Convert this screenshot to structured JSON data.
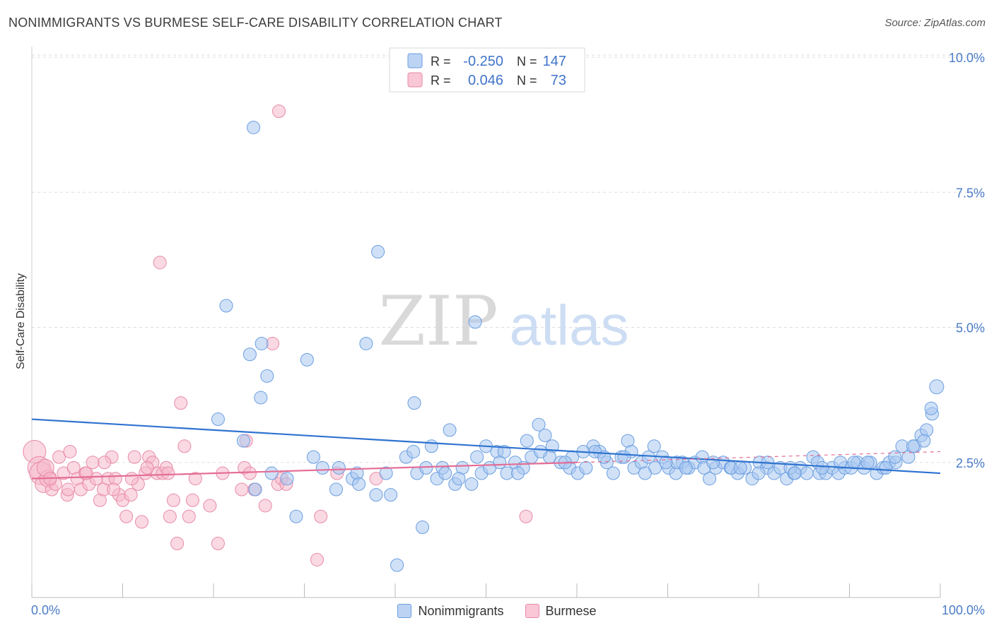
{
  "title": "NONIMMIGRANTS VS BURMESE SELF-CARE DISABILITY CORRELATION CHART",
  "source": "Source: ZipAtlas.com",
  "watermark": {
    "zip": "ZIP",
    "atlas": "atlas"
  },
  "colors": {
    "blue_fill": "#a9c8f0",
    "blue_stroke": "#6b9ee0",
    "blue_line": "#2f73d0",
    "pink_fill": "#f6b9cc",
    "pink_stroke": "#e88aa8",
    "pink_line": "#e46d96",
    "tick_label": "#4a7cc7",
    "grid": "#dddddd"
  },
  "legend_top": {
    "rows": [
      {
        "series": "Nonimmigrants",
        "r_label": "R =",
        "r_value": "-0.250",
        "n_label": "N =",
        "n_value": "147"
      },
      {
        "series": "Burmese",
        "r_label": "R =",
        "r_value": "0.046",
        "n_label": "N =",
        "n_value": "73"
      }
    ]
  },
  "legend_bottom": [
    "Nonimmigrants",
    "Burmese"
  ],
  "chart_data": {
    "type": "scatter",
    "title": "NONIMMIGRANTS VS BURMESE SELF-CARE DISABILITY CORRELATION CHART",
    "ylabel": "Self-Care Disability",
    "xlabel": "",
    "x_range": [
      0,
      100
    ],
    "y_range": [
      0,
      10.0
    ],
    "x_tick_labels": [
      "0.0%",
      "100.0%"
    ],
    "y_ticks": [
      2.5,
      5.0,
      7.5,
      10.0
    ],
    "y_tick_labels": [
      "2.5%",
      "5.0%",
      "7.5%",
      "10.0%"
    ],
    "grid": true,
    "legend_placement": "top-center",
    "series": [
      {
        "name": "Nonimmigrants",
        "color": "#a9c8f0",
        "trend": {
          "x": [
            0,
            100
          ],
          "y": [
            3.3,
            2.3
          ],
          "style": "solid"
        },
        "points": [
          [
            24.4,
            8.7
          ],
          [
            38.1,
            6.4
          ],
          [
            21.4,
            5.4
          ],
          [
            48.8,
            5.1
          ],
          [
            36.8,
            4.7
          ],
          [
            25.3,
            4.7
          ],
          [
            24.0,
            4.5
          ],
          [
            30.3,
            4.4
          ],
          [
            25.9,
            4.1
          ],
          [
            25.2,
            3.7
          ],
          [
            42.1,
            3.6
          ],
          [
            20.5,
            3.3
          ],
          [
            23.3,
            2.9
          ],
          [
            26.4,
            2.3
          ],
          [
            28.1,
            2.2
          ],
          [
            29.1,
            1.5
          ],
          [
            24.6,
            2.0
          ],
          [
            33.8,
            2.4
          ],
          [
            33.5,
            2.0
          ],
          [
            35.3,
            2.2
          ],
          [
            35.8,
            2.3
          ],
          [
            37.9,
            1.9
          ],
          [
            39.5,
            1.9
          ],
          [
            40.2,
            0.6
          ],
          [
            41.2,
            2.6
          ],
          [
            42.4,
            2.3
          ],
          [
            43.4,
            2.4
          ],
          [
            44.6,
            2.2
          ],
          [
            45.2,
            2.4
          ],
          [
            46.0,
            3.1
          ],
          [
            46.6,
            2.1
          ],
          [
            47.4,
            2.4
          ],
          [
            48.4,
            2.1
          ],
          [
            49.5,
            2.3
          ],
          [
            50.4,
            2.4
          ],
          [
            51.2,
            2.7
          ],
          [
            52.3,
            2.3
          ],
          [
            53.2,
            2.5
          ],
          [
            54.1,
            2.4
          ],
          [
            55.0,
            2.6
          ],
          [
            55.8,
            3.2
          ],
          [
            56.5,
            3.0
          ],
          [
            57.3,
            2.8
          ],
          [
            58.2,
            2.5
          ],
          [
            59.2,
            2.4
          ],
          [
            60.1,
            2.3
          ],
          [
            61.0,
            2.4
          ],
          [
            61.8,
            2.8
          ],
          [
            62.5,
            2.7
          ],
          [
            63.3,
            2.5
          ],
          [
            64.0,
            2.3
          ],
          [
            64.9,
            2.6
          ],
          [
            65.6,
            2.9
          ],
          [
            66.3,
            2.4
          ],
          [
            67.1,
            2.5
          ],
          [
            67.9,
            2.6
          ],
          [
            68.6,
            2.4
          ],
          [
            69.4,
            2.6
          ],
          [
            70.1,
            2.4
          ],
          [
            70.9,
            2.3
          ],
          [
            71.6,
            2.5
          ],
          [
            72.3,
            2.4
          ],
          [
            73.0,
            2.5
          ],
          [
            73.8,
            2.6
          ],
          [
            74.6,
            2.2
          ],
          [
            75.3,
            2.4
          ],
          [
            76.1,
            2.5
          ],
          [
            76.9,
            2.4
          ],
          [
            77.7,
            2.3
          ],
          [
            78.5,
            2.4
          ],
          [
            79.3,
            2.2
          ],
          [
            80.1,
            2.5
          ],
          [
            80.9,
            2.4
          ],
          [
            81.7,
            2.3
          ],
          [
            82.4,
            2.4
          ],
          [
            83.1,
            2.2
          ],
          [
            83.9,
            2.3
          ],
          [
            84.6,
            2.4
          ],
          [
            85.3,
            2.3
          ],
          [
            86.0,
            2.6
          ],
          [
            86.7,
            2.3
          ],
          [
            87.4,
            2.3
          ],
          [
            88.1,
            2.4
          ],
          [
            88.8,
            2.3
          ],
          [
            89.5,
            2.4
          ],
          [
            90.2,
            2.4
          ],
          [
            90.9,
            2.5
          ],
          [
            91.6,
            2.4
          ],
          [
            92.3,
            2.5
          ],
          [
            93.0,
            2.3
          ],
          [
            93.7,
            2.4
          ],
          [
            94.4,
            2.5
          ],
          [
            95.1,
            2.5
          ],
          [
            95.8,
            2.8
          ],
          [
            96.5,
            2.6
          ],
          [
            97.2,
            2.8
          ],
          [
            97.9,
            3.0
          ],
          [
            98.5,
            3.1
          ],
          [
            99.1,
            3.4
          ],
          [
            99.6,
            3.9
          ],
          [
            98.2,
            2.9
          ],
          [
            99.0,
            3.5
          ],
          [
            42.0,
            2.7
          ],
          [
            44.0,
            2.8
          ],
          [
            52.0,
            2.7
          ],
          [
            54.5,
            2.9
          ],
          [
            57.0,
            2.6
          ],
          [
            59.5,
            2.6
          ],
          [
            62.0,
            2.7
          ],
          [
            66.0,
            2.7
          ],
          [
            68.5,
            2.8
          ],
          [
            71.0,
            2.5
          ],
          [
            74.0,
            2.4
          ],
          [
            77.0,
            2.4
          ],
          [
            80.0,
            2.3
          ],
          [
            83.5,
            2.4
          ],
          [
            86.5,
            2.5
          ],
          [
            89.0,
            2.5
          ],
          [
            92.0,
            2.5
          ],
          [
            95.0,
            2.6
          ],
          [
            31.0,
            2.6
          ],
          [
            32.0,
            2.4
          ],
          [
            36.0,
            2.1
          ],
          [
            39.0,
            2.3
          ],
          [
            43.0,
            1.3
          ],
          [
            45.5,
            2.3
          ],
          [
            47.0,
            2.2
          ],
          [
            49.0,
            2.6
          ],
          [
            50.0,
            2.8
          ],
          [
            51.5,
            2.5
          ],
          [
            53.5,
            2.3
          ],
          [
            56.0,
            2.7
          ],
          [
            58.7,
            2.5
          ],
          [
            60.7,
            2.7
          ],
          [
            63.0,
            2.6
          ],
          [
            65.2,
            2.6
          ],
          [
            67.5,
            2.3
          ],
          [
            69.8,
            2.5
          ],
          [
            72.0,
            2.4
          ],
          [
            75.0,
            2.5
          ],
          [
            78.0,
            2.4
          ],
          [
            81.0,
            2.5
          ],
          [
            84.0,
            2.3
          ],
          [
            87.0,
            2.4
          ],
          [
            90.5,
            2.5
          ],
          [
            94.0,
            2.4
          ],
          [
            97.0,
            2.8
          ]
        ]
      },
      {
        "name": "Burmese",
        "color": "#f6b9cc",
        "trend": {
          "x": [
            0,
            60,
            100
          ],
          "y": [
            2.2,
            2.5,
            2.7
          ],
          "style": "solid-then-dashed"
        },
        "points": [
          [
            0.3,
            2.7
          ],
          [
            0.8,
            2.4
          ],
          [
            1.0,
            2.3
          ],
          [
            1.3,
            2.1
          ],
          [
            1.8,
            2.2
          ],
          [
            2.2,
            2.0
          ],
          [
            2.6,
            2.1
          ],
          [
            3.0,
            2.6
          ],
          [
            3.5,
            2.3
          ],
          [
            3.9,
            1.9
          ],
          [
            4.2,
            2.7
          ],
          [
            4.6,
            2.4
          ],
          [
            5.0,
            2.2
          ],
          [
            5.4,
            2.0
          ],
          [
            5.9,
            2.3
          ],
          [
            6.3,
            2.1
          ],
          [
            6.7,
            2.5
          ],
          [
            7.1,
            2.2
          ],
          [
            7.5,
            1.8
          ],
          [
            7.9,
            2.0
          ],
          [
            8.4,
            2.2
          ],
          [
            8.8,
            2.6
          ],
          [
            9.2,
            2.2
          ],
          [
            9.6,
            1.9
          ],
          [
            10.0,
            1.8
          ],
          [
            10.4,
            1.5
          ],
          [
            10.9,
            1.9
          ],
          [
            11.3,
            2.6
          ],
          [
            11.7,
            2.1
          ],
          [
            12.1,
            1.4
          ],
          [
            12.5,
            2.3
          ],
          [
            12.9,
            2.6
          ],
          [
            13.3,
            2.5
          ],
          [
            13.8,
            2.3
          ],
          [
            14.1,
            6.2
          ],
          [
            14.4,
            2.3
          ],
          [
            14.8,
            2.4
          ],
          [
            15.2,
            1.5
          ],
          [
            15.6,
            1.8
          ],
          [
            16.0,
            1.0
          ],
          [
            16.4,
            3.6
          ],
          [
            16.8,
            2.8
          ],
          [
            17.3,
            1.5
          ],
          [
            17.7,
            1.8
          ],
          [
            19.6,
            1.7
          ],
          [
            20.5,
            1.0
          ],
          [
            21.0,
            2.3
          ],
          [
            23.1,
            2.0
          ],
          [
            23.4,
            2.4
          ],
          [
            23.6,
            2.9
          ],
          [
            24.0,
            2.3
          ],
          [
            24.5,
            2.0
          ],
          [
            25.7,
            1.7
          ],
          [
            26.5,
            4.7
          ],
          [
            27.1,
            2.1
          ],
          [
            27.5,
            2.2
          ],
          [
            28.0,
            2.1
          ],
          [
            31.4,
            0.7
          ],
          [
            31.8,
            1.5
          ],
          [
            37.9,
            2.2
          ],
          [
            33.6,
            2.3
          ],
          [
            54.4,
            1.5
          ],
          [
            27.2,
            9.0
          ],
          [
            1.5,
            2.4
          ],
          [
            2.0,
            2.2
          ],
          [
            4.0,
            2.0
          ],
          [
            6.0,
            2.3
          ],
          [
            8.0,
            2.5
          ],
          [
            9.0,
            2.0
          ],
          [
            11.0,
            2.2
          ],
          [
            12.7,
            2.4
          ],
          [
            15.0,
            2.3
          ],
          [
            18.0,
            2.2
          ]
        ]
      }
    ]
  }
}
